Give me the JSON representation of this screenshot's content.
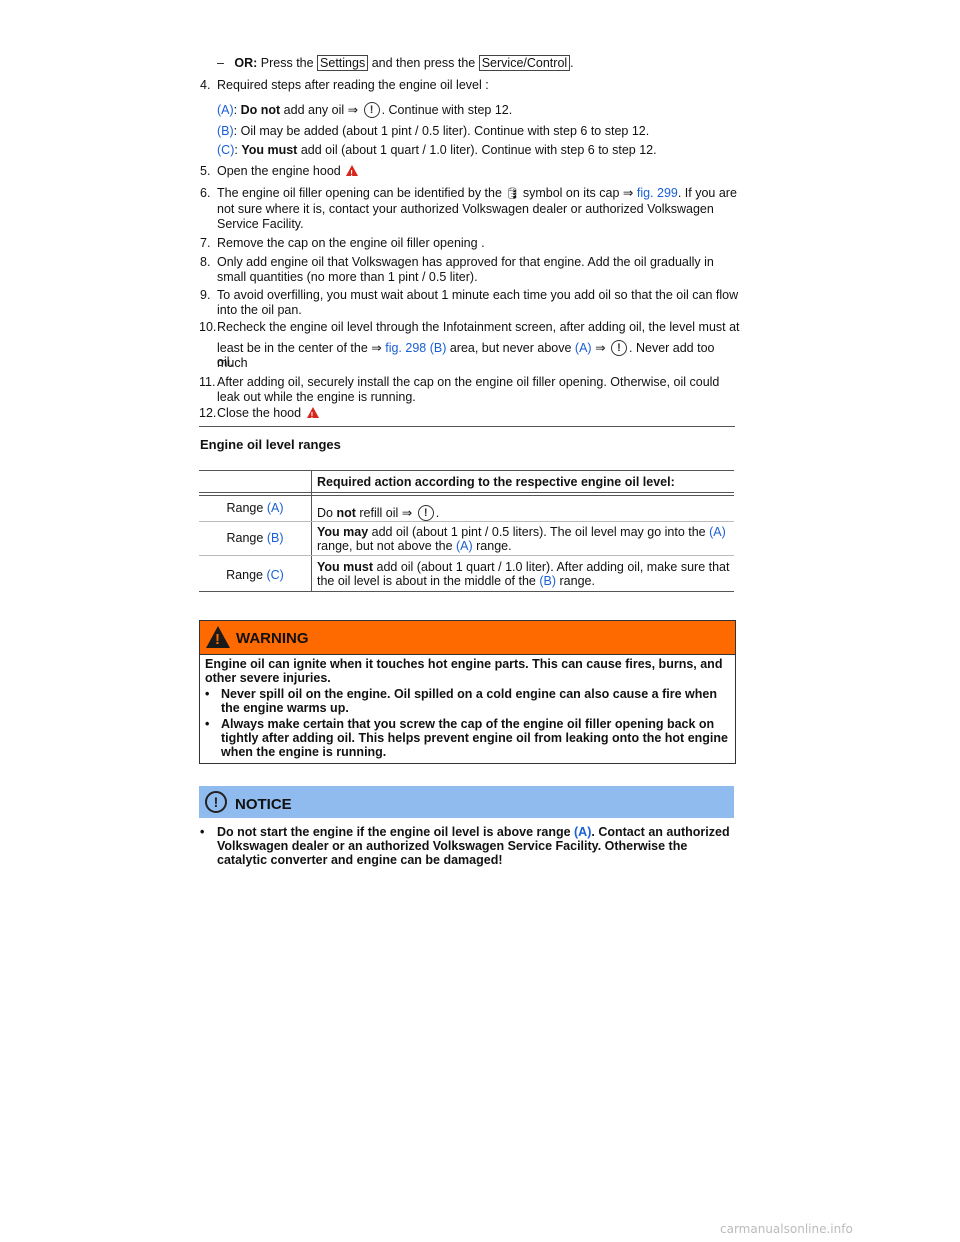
{
  "or_line": {
    "dash": "–",
    "or_label": "OR:",
    "text1": " Press the ",
    "settings_button": "Settings",
    "text2": " and then press the ",
    "service_button": "Service/Control",
    "end": "."
  },
  "steps": [
    {
      "num": "4.",
      "text": "Required steps after reading the engine oil level :"
    },
    {
      "num": "5.",
      "text": "Open the engine hood"
    },
    {
      "num": "6.",
      "text_a": "The engine oil filler opening can be identified by the ",
      "text_b": " symbol on its cap ⇒ ",
      "link": "fig. 299",
      "text_c": ". If you are not sure where it is, contact your authorized Volkswagen dealer or authorized Volkswagen Service Facility."
    },
    {
      "num": "7.",
      "text": "Remove the cap on the engine oil filler opening ."
    },
    {
      "num": "8.",
      "text": "Only add engine oil that Volkswagen has approved for that engine. Add the oil gradually in small quantities (no more than 1 pint / 0.5 liter)."
    },
    {
      "num": "9.",
      "text": "To avoid overfilling, you must wait about 1 minute each time you add oil so that the oil can flow into the oil pan."
    },
    {
      "num": "10.",
      "text_a": "Recheck the engine oil level through the Infotainment screen, after adding oil, the level must at",
      "text_b": "least be in the center of the ⇒ ",
      "link": "fig. 298 (B)",
      "text_c": " area, but never above ",
      "link2": "(A)",
      "text_d": " ⇒ ",
      "text_e": ". Never add too much",
      "text_f": "oil."
    },
    {
      "num": "11.",
      "text": "After adding oil, securely install the cap on the engine oil filler opening. Otherwise, oil could leak out while the engine is running."
    },
    {
      "num": "12.",
      "text": "Close the hood"
    }
  ],
  "substeps": [
    {
      "label": "(A)",
      "sep": ": ",
      "bold": "Do not",
      "rest": " add any oil ⇒ ",
      "tail": ". Continue with step 12."
    },
    {
      "label": "(B)",
      "sep": ": ",
      "bold": "",
      "rest": "Oil may be added (about 1 pint / 0.5 liter). Continue with step 6 to step 12.",
      "tail": ""
    },
    {
      "label": "(C)",
      "sep": ": ",
      "bold": "You must",
      "rest": " add oil (about 1 quart / 1.0 liter). Continue with step 6 to step 12.",
      "tail": ""
    }
  ],
  "section_title": "Engine oil level ranges",
  "table": {
    "header": "Required action according to the respective engine oil level:",
    "rows": [
      {
        "range": "Range ",
        "range_label": "(A)",
        "bold": "",
        "a": "Do ",
        "b": "not",
        "c": " refill oil ⇒ ",
        "d": "."
      },
      {
        "range": "Range ",
        "range_label": "(B)",
        "bold": "You may",
        "a": " add oil (about 1 pint / 0.5 liters). The oil level may go into the ",
        "l1": "(A)",
        "b": " range, but not above the ",
        "l2": "(A)",
        "c": " range."
      },
      {
        "range": "Range ",
        "range_label": "(C)",
        "bold": "You must",
        "a": " add oil (about 1 quart / 1.0 liter). After adding oil, make sure that the oil level is about in the middle of the ",
        "l1": "(B)",
        "b": " range."
      }
    ]
  },
  "warning": {
    "title": "WARNING",
    "intro": "Engine oil can ignite when it touches hot engine parts. This can cause fires, burns, and other severe injuries.",
    "bullets": [
      "Never spill oil on the engine. Oil spilled on a cold engine can also cause a fire when the engine warms up.",
      "Always make certain that you screw the cap of the engine oil filler opening back on tightly after adding oil. This helps prevent engine oil from leaking onto the hot engine when the engine is running."
    ]
  },
  "notice": {
    "title": "NOTICE",
    "text_a": "Do not start the engine if the engine oil level is above range ",
    "link": "(A)",
    "text_b": ". Contact an authorized Volkswagen dealer or an authorized Volkswagen Service Facility. Otherwise the catalytic converter and engine can be damaged!"
  },
  "footer": "carmanualsonline.info",
  "colors": {
    "link": "#1a5fd6",
    "warning": "#ff6a00",
    "notice": "#8fbbef"
  }
}
